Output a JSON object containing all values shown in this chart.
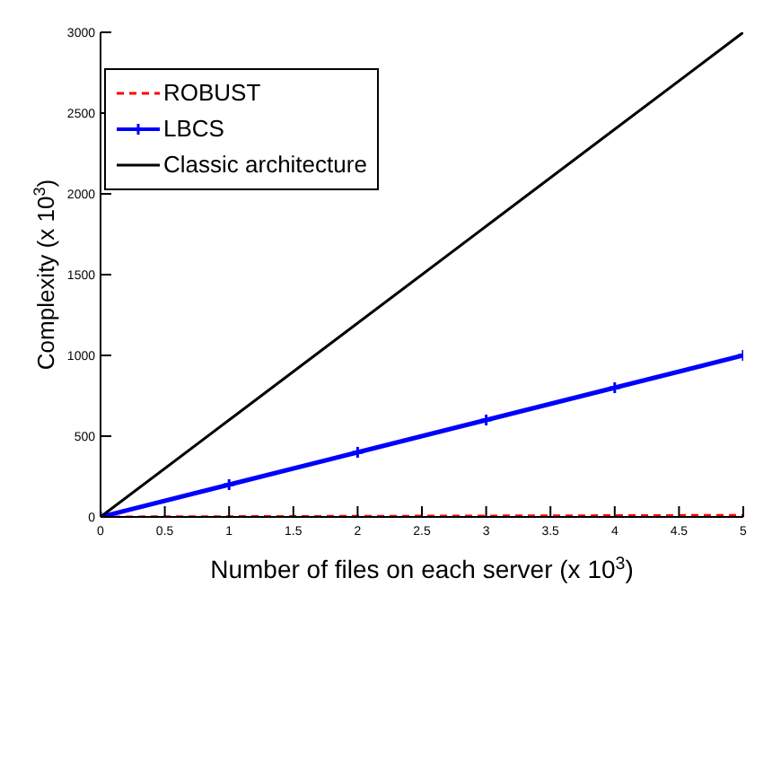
{
  "chart_data": {
    "type": "line",
    "xlabel": "Number of files on each server   (x 10$^{3}$)",
    "ylabel": "Complexity (x 10$^{3}$)",
    "x": [
      0,
      1,
      2,
      3,
      4,
      5
    ],
    "series": [
      {
        "name": "ROBUST",
        "color": "#ff0000",
        "x": [
          0,
          5
        ],
        "values": [
          0,
          10
        ],
        "line_style": "dashed",
        "marker": "none"
      },
      {
        "name": "LBCS",
        "color": "#0000ff",
        "values": [
          0,
          200,
          400,
          600,
          800,
          1000
        ],
        "line_style": "solid",
        "marker": "cross"
      },
      {
        "name": "Classic architecture",
        "color": "#000000",
        "values": [
          0,
          600,
          1200,
          1800,
          2400,
          3000
        ],
        "line_style": "solid",
        "marker": "none"
      }
    ],
    "xlim": [
      0,
      5
    ],
    "xticks": [
      0,
      0.5,
      1,
      1.5,
      2,
      2.5,
      3,
      3.5,
      4,
      4.5,
      5
    ],
    "ylim": [
      0,
      3000
    ],
    "yticks": [
      0,
      500,
      1000,
      1500,
      2000,
      2500,
      3000
    ],
    "grid": false,
    "legend": "top left"
  }
}
